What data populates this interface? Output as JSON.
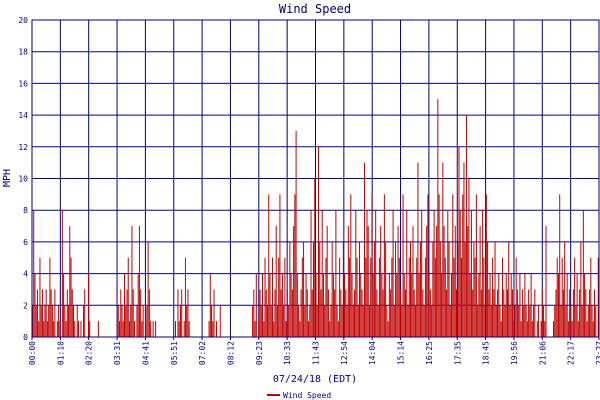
{
  "chart_data": {
    "type": "bar",
    "title": "Wind Speed",
    "xlabel": "07/24/18 (EDT)",
    "ylabel": "MPH",
    "ylim": [
      0,
      20
    ],
    "yticks": [
      0,
      2,
      4,
      6,
      8,
      10,
      12,
      14,
      16,
      18,
      20
    ],
    "xticks": [
      "00:00",
      "01:10",
      "02:20",
      "03:31",
      "04:41",
      "05:51",
      "07:02",
      "08:12",
      "09:23",
      "10:33",
      "11:43",
      "12:54",
      "14:04",
      "15:14",
      "16:25",
      "17:35",
      "18:45",
      "19:56",
      "21:06",
      "22:17",
      "23:27"
    ],
    "grid": true,
    "legend_position": "bottom-center",
    "colors": {
      "series": "#c00000",
      "grid": "#000080",
      "text": "#000080"
    },
    "series": [
      {
        "name": "Wind Speed",
        "sampling": "approximately one reading per two minutes, 00:00 to 23:59",
        "values": [
          2,
          8,
          4,
          2,
          3,
          1,
          5,
          2,
          3,
          1,
          2,
          3,
          1,
          2,
          5,
          3,
          2,
          1,
          3,
          0,
          1,
          2,
          1,
          0,
          8,
          4,
          2,
          1,
          3,
          2,
          7,
          5,
          3,
          2,
          1,
          0,
          2,
          1,
          0,
          1,
          0,
          2,
          3,
          0,
          0,
          4,
          1,
          0,
          0,
          0,
          0,
          0,
          0,
          1,
          0,
          0,
          0,
          0,
          0,
          0,
          0,
          0,
          0,
          0,
          0,
          0,
          0,
          0,
          0,
          2,
          1,
          3,
          2,
          1,
          4,
          2,
          3,
          5,
          1,
          2,
          7,
          3,
          1,
          0,
          2,
          4,
          7,
          3,
          1,
          2,
          0,
          1,
          2,
          6,
          3,
          1,
          0,
          1,
          0,
          1,
          0,
          0,
          0,
          0,
          0,
          0,
          0,
          0,
          0,
          0,
          0,
          0,
          0,
          0,
          0,
          1,
          0,
          3,
          1,
          2,
          3,
          0,
          1,
          5,
          2,
          3,
          1,
          0,
          0,
          0,
          0,
          0,
          0,
          0,
          0,
          0,
          0,
          0,
          0,
          0,
          0,
          0,
          1,
          4,
          2,
          1,
          3,
          0,
          1,
          0,
          0,
          2,
          0,
          0,
          0,
          0,
          0,
          0,
          0,
          0,
          0,
          0,
          0,
          0,
          0,
          0,
          0,
          0,
          0,
          0,
          0,
          0,
          0,
          0,
          0,
          0,
          0,
          2,
          3,
          1,
          4,
          0,
          1,
          3,
          2,
          4,
          1,
          5,
          3,
          2,
          9,
          4,
          2,
          5,
          1,
          3,
          7,
          2,
          5,
          9,
          3,
          4,
          2,
          5,
          1,
          3,
          2,
          6,
          4,
          3,
          7,
          9,
          13,
          4,
          2,
          1,
          3,
          5,
          6,
          2,
          4,
          3,
          1,
          2,
          8,
          3,
          6,
          10,
          4,
          2,
          12,
          6,
          3,
          8,
          4,
          2,
          5,
          7,
          3,
          1,
          2,
          6,
          4,
          3,
          8,
          2,
          1,
          5,
          3,
          2,
          6,
          4,
          3,
          2,
          7,
          5,
          9,
          4,
          2,
          3,
          8,
          5,
          2,
          6,
          4,
          3,
          2,
          11,
          5,
          8,
          7,
          2,
          5,
          9,
          4,
          6,
          8,
          3,
          2,
          5,
          7,
          4,
          3,
          9,
          6,
          2,
          1,
          4,
          3,
          5,
          8,
          2,
          6,
          4,
          7,
          5,
          3,
          2,
          9,
          4,
          3,
          8,
          2,
          5,
          6,
          4,
          7,
          3,
          2,
          5,
          11,
          4,
          6,
          8,
          3,
          2,
          5,
          7,
          9,
          4,
          3,
          2,
          6,
          8,
          5,
          7,
          15,
          9,
          6,
          4,
          11,
          7,
          5,
          3,
          8,
          6,
          2,
          4,
          9,
          5,
          7,
          3,
          6,
          12,
          8,
          5,
          9,
          11,
          6,
          14,
          7,
          10,
          4,
          8,
          3,
          6,
          5,
          9,
          2,
          4,
          7,
          3,
          8,
          5,
          2,
          9,
          6,
          3,
          4,
          2,
          5,
          3,
          6,
          2,
          3,
          4,
          2,
          1,
          5,
          3,
          2,
          4,
          3,
          6,
          2,
          4,
          3,
          1,
          2,
          5,
          3,
          2,
          4,
          1,
          3,
          2,
          4,
          2,
          1,
          3,
          2,
          4,
          1,
          2,
          3,
          0,
          1,
          2,
          0,
          1,
          3,
          2,
          1,
          7,
          0,
          0,
          0,
          0,
          0,
          1,
          2,
          3,
          5,
          4,
          9,
          2,
          5,
          3,
          6,
          2,
          4,
          1,
          3,
          2,
          1,
          3,
          5,
          2,
          4,
          1,
          3,
          6,
          2,
          8,
          4,
          3,
          1,
          2,
          3,
          5,
          2,
          1,
          3,
          2,
          0,
          5
        ]
      }
    ]
  }
}
